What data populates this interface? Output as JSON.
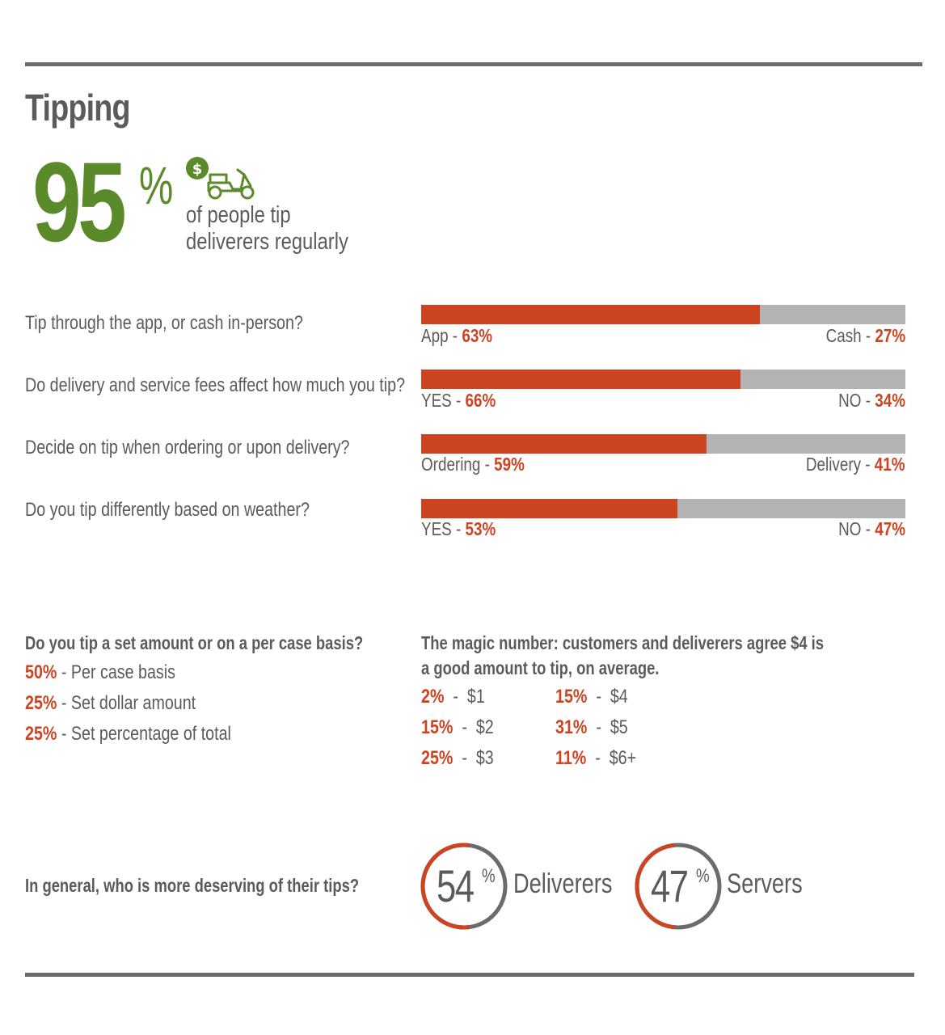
{
  "title": "Tipping",
  "headline": {
    "value": "95",
    "unit": "%",
    "caption_line1": "of people tip",
    "caption_line2": "deliverers regularly",
    "icon": "scooter-with-dollar-icon",
    "icon_symbol": "$"
  },
  "colors": {
    "accent": "#cc4422",
    "green": "#5a8a2a",
    "gray_bar": "#b3b3b3",
    "text": "#5b5b5b"
  },
  "chart_data": [
    {
      "type": "bar",
      "orientation": "horizontal-stacked",
      "questions": [
        {
          "question": "Tip through the app, or cash in-person?",
          "left_label": "App - ",
          "left_value": 63,
          "left_text": "63%",
          "right_label": "Cash - ",
          "right_value": 27,
          "right_text": "27%"
        },
        {
          "question": "Do delivery and service fees affect how much you tip?",
          "left_label": "YES - ",
          "left_value": 66,
          "left_text": "66%",
          "right_label": "NO - ",
          "right_value": 34,
          "right_text": "34%"
        },
        {
          "question": "Decide on tip when ordering or upon delivery?",
          "left_label": "Ordering - ",
          "left_value": 59,
          "left_text": "59%",
          "right_label": "Delivery - ",
          "right_value": 41,
          "right_text": "41%"
        },
        {
          "question": "Do you tip differently based on weather?",
          "left_label": "YES - ",
          "left_value": 53,
          "left_text": "53%",
          "right_label": "NO - ",
          "right_value": 47,
          "right_text": "47%"
        }
      ]
    },
    {
      "type": "pie",
      "question": "In general, who is more deserving of their tips?",
      "items": [
        {
          "value": 54,
          "value_text": "54",
          "unit": "%",
          "label": "Deliverers"
        },
        {
          "value": 47,
          "value_text": "47",
          "unit": "%",
          "label": "Servers"
        }
      ]
    }
  ],
  "basis": {
    "question": "Do you tip a set amount or on a per case basis?",
    "items": [
      {
        "pct": "50%",
        "label": " - Per case basis"
      },
      {
        "pct": "25%",
        "label": " - Set dollar amount"
      },
      {
        "pct": "25%",
        "label": " - Set percentage of total"
      }
    ]
  },
  "magic": {
    "line1": "The magic number: customers and deliverers agree $4 is",
    "line2": "a good amount to tip, on average.",
    "items": [
      {
        "pct": "2%",
        "amount": "  -  $1"
      },
      {
        "pct": "15%",
        "amount": "  -  $2"
      },
      {
        "pct": "25%",
        "amount": "  -  $3"
      },
      {
        "pct": "15%",
        "amount": "  -  $4"
      },
      {
        "pct": "31%",
        "amount": "  -  $5"
      },
      {
        "pct": "11%",
        "amount": "  -  $6+"
      }
    ]
  }
}
